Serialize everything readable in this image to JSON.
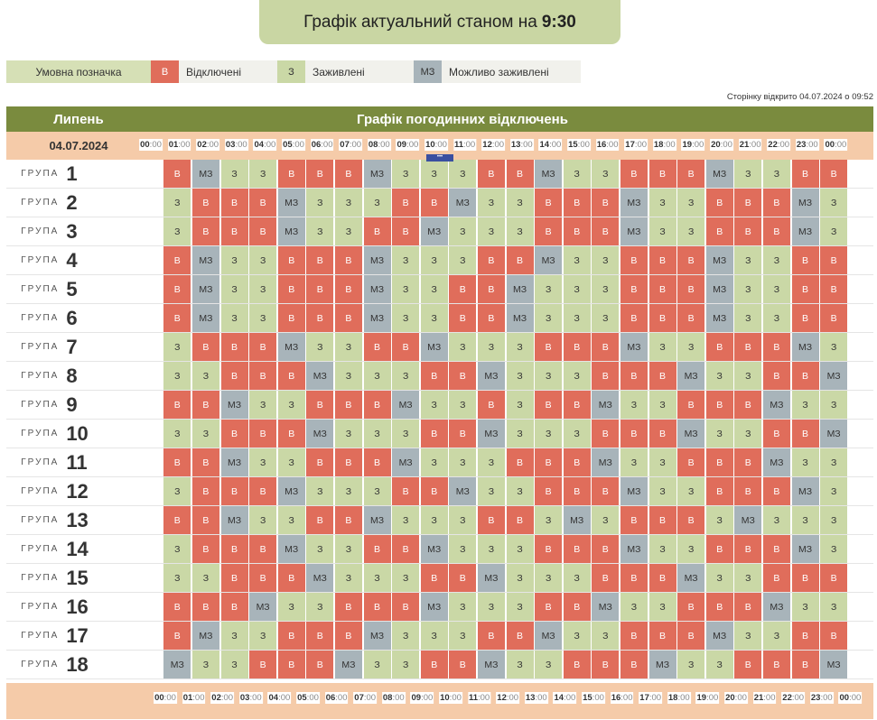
{
  "banner": {
    "text": "Графік актуальний станом на",
    "time": "9:30"
  },
  "legend": {
    "title": "Умовна позначка",
    "items": [
      {
        "code": "В",
        "label": "Відключені",
        "color": "#e06d5b"
      },
      {
        "code": "З",
        "label": "Заживлені",
        "color": "#cad8a6"
      },
      {
        "code": "МЗ",
        "label": "Можливо заживлені",
        "color": "#a8b4ba"
      }
    ]
  },
  "opened_text": "Сторінку відкрито 04.07.2024 о 09:52",
  "table": {
    "month": "Липень",
    "title": "Графік погодинних відключень",
    "date": "04.07.2024",
    "group_word": "ГРУПА",
    "hours": [
      "00",
      "01",
      "02",
      "03",
      "04",
      "05",
      "06",
      "07",
      "08",
      "09",
      "10",
      "11",
      "12",
      "13",
      "14",
      "15",
      "16",
      "17",
      "18",
      "19",
      "20",
      "21",
      "22",
      "23",
      "00"
    ],
    "minutes": ":00",
    "current_marker": "•••",
    "groups": [
      {
        "num": "1",
        "cells": [
          "В",
          "МЗ",
          "З",
          "З",
          "В",
          "В",
          "В",
          "МЗ",
          "З",
          "З",
          "З",
          "В",
          "В",
          "МЗ",
          "З",
          "З",
          "В",
          "В",
          "В",
          "МЗ",
          "З",
          "З",
          "В",
          "В"
        ]
      },
      {
        "num": "2",
        "cells": [
          "З",
          "В",
          "В",
          "В",
          "МЗ",
          "З",
          "З",
          "З",
          "В",
          "В",
          "МЗ",
          "З",
          "З",
          "В",
          "В",
          "В",
          "МЗ",
          "З",
          "З",
          "В",
          "В",
          "В",
          "МЗ",
          "З"
        ]
      },
      {
        "num": "3",
        "cells": [
          "З",
          "В",
          "В",
          "В",
          "МЗ",
          "З",
          "З",
          "В",
          "В",
          "МЗ",
          "З",
          "З",
          "З",
          "В",
          "В",
          "В",
          "МЗ",
          "З",
          "З",
          "В",
          "В",
          "В",
          "МЗ",
          "З"
        ]
      },
      {
        "num": "4",
        "cells": [
          "В",
          "МЗ",
          "З",
          "З",
          "В",
          "В",
          "В",
          "МЗ",
          "З",
          "З",
          "З",
          "В",
          "В",
          "МЗ",
          "З",
          "З",
          "В",
          "В",
          "В",
          "МЗ",
          "З",
          "З",
          "В",
          "В"
        ]
      },
      {
        "num": "5",
        "cells": [
          "В",
          "МЗ",
          "З",
          "З",
          "В",
          "В",
          "В",
          "МЗ",
          "З",
          "З",
          "В",
          "В",
          "МЗ",
          "З",
          "З",
          "З",
          "В",
          "В",
          "В",
          "МЗ",
          "З",
          "З",
          "В",
          "В"
        ]
      },
      {
        "num": "6",
        "cells": [
          "В",
          "МЗ",
          "З",
          "З",
          "В",
          "В",
          "В",
          "МЗ",
          "З",
          "З",
          "В",
          "В",
          "МЗ",
          "З",
          "З",
          "З",
          "В",
          "В",
          "В",
          "МЗ",
          "З",
          "З",
          "В",
          "В"
        ]
      },
      {
        "num": "7",
        "cells": [
          "З",
          "В",
          "В",
          "В",
          "МЗ",
          "З",
          "З",
          "В",
          "В",
          "МЗ",
          "З",
          "З",
          "З",
          "В",
          "В",
          "В",
          "МЗ",
          "З",
          "З",
          "В",
          "В",
          "В",
          "МЗ",
          "З"
        ]
      },
      {
        "num": "8",
        "cells": [
          "З",
          "З",
          "В",
          "В",
          "В",
          "МЗ",
          "З",
          "З",
          "З",
          "В",
          "В",
          "МЗ",
          "З",
          "З",
          "З",
          "В",
          "В",
          "В",
          "МЗ",
          "З",
          "З",
          "В",
          "В",
          "МЗ"
        ]
      },
      {
        "num": "9",
        "cells": [
          "В",
          "В",
          "МЗ",
          "З",
          "З",
          "В",
          "В",
          "В",
          "МЗ",
          "З",
          "З",
          "В",
          "З",
          "В",
          "В",
          "МЗ",
          "З",
          "З",
          "В",
          "В",
          "В",
          "МЗ",
          "З",
          "З"
        ]
      },
      {
        "num": "10",
        "cells": [
          "З",
          "З",
          "В",
          "В",
          "В",
          "МЗ",
          "З",
          "З",
          "З",
          "В",
          "В",
          "МЗ",
          "З",
          "З",
          "З",
          "В",
          "В",
          "В",
          "МЗ",
          "З",
          "З",
          "В",
          "В",
          "МЗ"
        ]
      },
      {
        "num": "11",
        "cells": [
          "В",
          "В",
          "МЗ",
          "З",
          "З",
          "В",
          "В",
          "В",
          "МЗ",
          "З",
          "З",
          "З",
          "В",
          "В",
          "В",
          "МЗ",
          "З",
          "З",
          "В",
          "В",
          "В",
          "МЗ",
          "З",
          "З"
        ]
      },
      {
        "num": "12",
        "cells": [
          "З",
          "В",
          "В",
          "В",
          "МЗ",
          "З",
          "З",
          "З",
          "В",
          "В",
          "МЗ",
          "З",
          "З",
          "В",
          "В",
          "В",
          "МЗ",
          "З",
          "З",
          "В",
          "В",
          "В",
          "МЗ",
          "З"
        ]
      },
      {
        "num": "13",
        "cells": [
          "В",
          "В",
          "МЗ",
          "З",
          "З",
          "В",
          "В",
          "МЗ",
          "З",
          "З",
          "З",
          "В",
          "В",
          "З",
          "МЗ",
          "З",
          "В",
          "В",
          "В",
          "З",
          "МЗ",
          "З",
          "З",
          "З"
        ]
      },
      {
        "num": "14",
        "cells": [
          "З",
          "В",
          "В",
          "В",
          "МЗ",
          "З",
          "З",
          "В",
          "В",
          "МЗ",
          "З",
          "З",
          "З",
          "В",
          "В",
          "В",
          "МЗ",
          "З",
          "З",
          "В",
          "В",
          "В",
          "МЗ",
          "З"
        ]
      },
      {
        "num": "15",
        "cells": [
          "З",
          "З",
          "В",
          "В",
          "В",
          "МЗ",
          "З",
          "З",
          "З",
          "В",
          "В",
          "МЗ",
          "З",
          "З",
          "З",
          "В",
          "В",
          "В",
          "МЗ",
          "З",
          "З",
          "В",
          "В",
          "В"
        ]
      },
      {
        "num": "16",
        "cells": [
          "В",
          "В",
          "В",
          "МЗ",
          "З",
          "З",
          "В",
          "В",
          "В",
          "МЗ",
          "З",
          "З",
          "З",
          "В",
          "В",
          "МЗ",
          "З",
          "З",
          "В",
          "В",
          "В",
          "МЗ",
          "З",
          "З"
        ]
      },
      {
        "num": "17",
        "cells": [
          "В",
          "МЗ",
          "З",
          "З",
          "В",
          "В",
          "В",
          "МЗ",
          "З",
          "З",
          "З",
          "В",
          "В",
          "МЗ",
          "З",
          "З",
          "В",
          "В",
          "В",
          "МЗ",
          "З",
          "З",
          "В",
          "В"
        ]
      },
      {
        "num": "18",
        "cells": [
          "МЗ",
          "З",
          "З",
          "В",
          "В",
          "В",
          "МЗ",
          "З",
          "З",
          "В",
          "В",
          "МЗ",
          "З",
          "З",
          "В",
          "В",
          "В",
          "МЗ",
          "З",
          "З",
          "В",
          "В",
          "В",
          "МЗ"
        ]
      }
    ]
  }
}
